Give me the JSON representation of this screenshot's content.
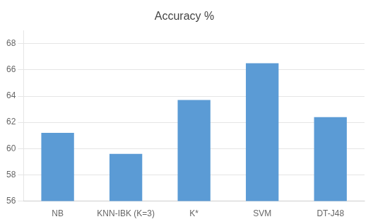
{
  "chart_data": {
    "type": "bar",
    "title": "Accuracy %",
    "categories": [
      "NB",
      "KNN-IBK (K=3)",
      "K*",
      "SVM",
      "DT-J48"
    ],
    "values": [
      61.2,
      59.6,
      63.7,
      66.5,
      62.4
    ],
    "color": "#5B9BD5",
    "ylim": [
      56,
      69
    ],
    "yticks": [
      56,
      58,
      60,
      62,
      64,
      66,
      68
    ],
    "grid": true
  }
}
